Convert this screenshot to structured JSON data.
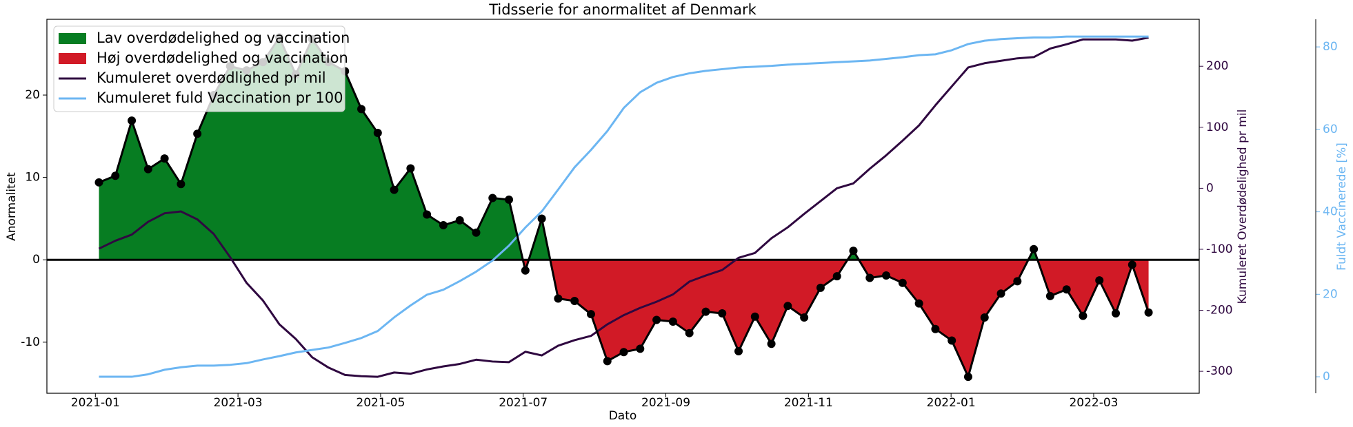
{
  "chart_data": {
    "type": "line",
    "title": "Tidsserie for anormalitet af Denmark",
    "x_label": "Dato",
    "y_label": "Anormalitet",
    "y2_label": "Kumuleret Overdødelighed pr mil",
    "y3_label": "Fuldt Vaccinerede [%]",
    "x": [
      0.05,
      0.28,
      0.51,
      0.74,
      0.97,
      1.2,
      1.43,
      1.66,
      1.89,
      2.12,
      2.35,
      2.58,
      2.81,
      3.04,
      3.27,
      3.5,
      3.73,
      3.96,
      4.19,
      4.42,
      4.65,
      4.88,
      5.11,
      5.34,
      5.57,
      5.8,
      6.03,
      6.26,
      6.49,
      6.72,
      6.95,
      7.18,
      7.41,
      7.64,
      7.87,
      8.1,
      8.33,
      8.56,
      8.79,
      9.02,
      9.25,
      9.48,
      9.71,
      9.94,
      10.17,
      10.4,
      10.63,
      10.86,
      11.09,
      11.32,
      11.55,
      11.78,
      12.01,
      12.24,
      12.47,
      12.7,
      12.93,
      13.16,
      13.39,
      13.62,
      13.85,
      14.08,
      14.31,
      14.54,
      14.77
    ],
    "xlim": [
      -0.68,
      15.48
    ],
    "xticks": [
      {
        "value": 0,
        "label": "2021-01"
      },
      {
        "value": 2,
        "label": "2021-03"
      },
      {
        "value": 4,
        "label": "2021-05"
      },
      {
        "value": 6,
        "label": "2021-07"
      },
      {
        "value": 8,
        "label": "2021-09"
      },
      {
        "value": 10,
        "label": "2021-11"
      },
      {
        "value": 12,
        "label": "2022-01"
      },
      {
        "value": 14,
        "label": "2022-03"
      }
    ],
    "ylim": [
      -16.2,
      29.2
    ],
    "yticks": [
      -10,
      0,
      10,
      20
    ],
    "y2lim": [
      -336,
      277
    ],
    "y2ticks": [
      -300,
      -200,
      -100,
      0,
      100,
      200
    ],
    "y3lim": [
      -4,
      86.7
    ],
    "y3ticks": [
      0,
      20,
      40,
      60,
      80
    ],
    "zero_line": 0,
    "legend": "upper left",
    "series": [
      {
        "color": "#000000",
        "marker": true,
        "fill_above": {
          "name": "Lav overdødelighed og vaccination",
          "color": "#077d22"
        },
        "fill_below": {
          "name": "Høj overdødelighed og vaccination",
          "color": "#d11a26"
        },
        "values": [
          9.4,
          10.2,
          16.9,
          11.0,
          12.3,
          9.2,
          15.3,
          20.0,
          23.5,
          23.0,
          24.0,
          27.0,
          22.5,
          26.8,
          24.0,
          22.9,
          18.3,
          15.4,
          8.5,
          11.1,
          5.5,
          4.2,
          4.8,
          3.3,
          7.5,
          7.3,
          -1.3,
          5.0,
          -4.7,
          -5.0,
          -6.6,
          -12.3,
          -11.2,
          -10.8,
          -7.3,
          -7.5,
          -8.9,
          -6.3,
          -6.5,
          -11.1,
          -6.9,
          -10.2,
          -5.6,
          -7.0,
          -3.4,
          -2.0,
          1.1,
          -2.2,
          -1.9,
          -2.8,
          -5.3,
          -8.4,
          -9.8,
          -14.2,
          -7.0,
          -4.1,
          -2.6,
          1.3,
          -4.4,
          -3.6,
          -6.8,
          -2.5,
          -6.5,
          -0.6,
          -6.4
        ]
      },
      {
        "name": "Kumuleret overdødlighed pr mil",
        "color": "#2f0840",
        "axis": "y2",
        "values": [
          -99,
          -86,
          -76,
          -55,
          -41,
          -38,
          -51,
          -75,
          -113,
          -155,
          -184,
          -223,
          -247,
          -277,
          -294,
          -306,
          -308,
          -309,
          -302,
          -304,
          -297,
          -292,
          -288,
          -281,
          -284,
          -285,
          -268,
          -274,
          -258,
          -249,
          -242,
          -223,
          -208,
          -196,
          -186,
          -174,
          -153,
          -143,
          -134,
          -114,
          -106,
          -82,
          -64,
          -42,
          -21,
          0,
          8,
          32,
          54,
          78,
          103,
          136,
          167,
          198,
          205,
          209,
          213,
          215,
          229,
          236,
          244,
          244,
          244,
          242,
          247
        ]
      },
      {
        "name": "Kumuleret fuld Vaccination pr 100",
        "color": "#6cb6f2",
        "axis": "y3",
        "values": [
          0,
          0,
          0,
          0.6,
          1.7,
          2.3,
          2.7,
          2.7,
          2.9,
          3.3,
          4.2,
          5.0,
          5.9,
          6.5,
          7.1,
          8.2,
          9.4,
          11.1,
          14.4,
          17.3,
          19.9,
          21.1,
          23.2,
          25.5,
          28.2,
          31.8,
          36.2,
          40.1,
          45.4,
          50.8,
          55,
          59.6,
          65.2,
          69,
          71.3,
          72.7,
          73.6,
          74.2,
          74.6,
          75,
          75.2,
          75.4,
          75.7,
          75.9,
          76.1,
          76.3,
          76.5,
          76.7,
          77.1,
          77.5,
          78,
          78.2,
          79.2,
          80.7,
          81.5,
          81.9,
          82.1,
          82.3,
          82.3,
          82.5,
          82.5,
          82.5,
          82.5,
          82.5,
          82.5
        ]
      }
    ]
  }
}
